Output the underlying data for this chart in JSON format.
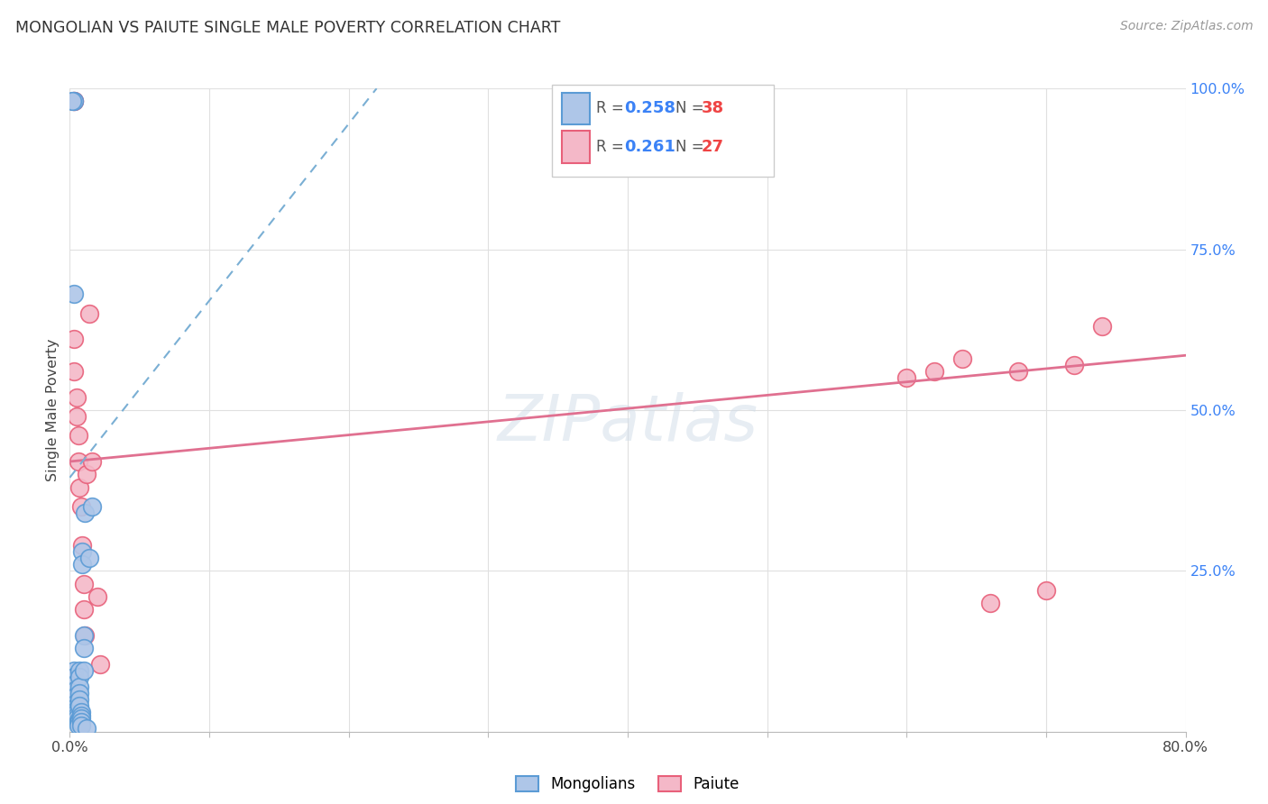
{
  "title": "MONGOLIAN VS PAIUTE SINGLE MALE POVERTY CORRELATION CHART",
  "source": "Source: ZipAtlas.com",
  "ylabel": "Single Male Poverty",
  "xlim": [
    0.0,
    0.8
  ],
  "ylim": [
    0.0,
    1.0
  ],
  "xticks": [
    0.0,
    0.1,
    0.2,
    0.3,
    0.4,
    0.5,
    0.6,
    0.7,
    0.8
  ],
  "xticklabels": [
    "0.0%",
    "",
    "",
    "",
    "",
    "",
    "",
    "",
    "80.0%"
  ],
  "yticks": [
    0.0,
    0.25,
    0.5,
    0.75,
    1.0
  ],
  "yticklabels": [
    "",
    "25.0%",
    "50.0%",
    "75.0%",
    "100.0%"
  ],
  "mongolian_fill_color": "#aec6e8",
  "mongolian_edge_color": "#5b9bd5",
  "paiute_fill_color": "#f4b8c8",
  "paiute_edge_color": "#e8607a",
  "mongolian_line_color": "#7aafd4",
  "paiute_line_color": "#e07090",
  "legend_R_color": "#3b82f6",
  "legend_N_color": "#ef4444",
  "background_color": "#ffffff",
  "grid_color": "#e0e0e0",
  "mongolian_R": 0.258,
  "mongolian_N": 38,
  "paiute_R": 0.261,
  "paiute_N": 27,
  "mongolian_scatter_x": [
    0.003,
    0.003,
    0.004,
    0.004,
    0.004,
    0.004,
    0.005,
    0.005,
    0.005,
    0.005,
    0.005,
    0.006,
    0.006,
    0.006,
    0.006,
    0.007,
    0.007,
    0.007,
    0.007,
    0.007,
    0.007,
    0.008,
    0.008,
    0.008,
    0.008,
    0.008,
    0.009,
    0.009,
    0.01,
    0.01,
    0.01,
    0.011,
    0.012,
    0.014,
    0.016,
    0.003,
    0.003,
    0.002
  ],
  "mongolian_scatter_y": [
    0.095,
    0.085,
    0.075,
    0.065,
    0.055,
    0.045,
    0.04,
    0.035,
    0.03,
    0.025,
    0.02,
    0.018,
    0.015,
    0.013,
    0.01,
    0.095,
    0.085,
    0.07,
    0.06,
    0.05,
    0.04,
    0.03,
    0.025,
    0.02,
    0.015,
    0.01,
    0.28,
    0.26,
    0.15,
    0.13,
    0.095,
    0.34,
    0.005,
    0.27,
    0.35,
    0.68,
    0.98,
    0.98
  ],
  "paiute_scatter_x": [
    0.003,
    0.003,
    0.005,
    0.005,
    0.006,
    0.006,
    0.007,
    0.008,
    0.009,
    0.01,
    0.01,
    0.011,
    0.012,
    0.014,
    0.016,
    0.02,
    0.022,
    0.6,
    0.62,
    0.64,
    0.66,
    0.68,
    0.7,
    0.72,
    0.74,
    0.003,
    0.003
  ],
  "paiute_scatter_y": [
    0.61,
    0.56,
    0.52,
    0.49,
    0.46,
    0.42,
    0.38,
    0.35,
    0.29,
    0.23,
    0.19,
    0.15,
    0.4,
    0.65,
    0.42,
    0.21,
    0.105,
    0.55,
    0.56,
    0.58,
    0.2,
    0.56,
    0.22,
    0.57,
    0.63,
    0.98,
    0.98
  ],
  "paiute_line_x0": 0.0,
  "paiute_line_y0": 0.42,
  "paiute_line_x1": 0.8,
  "paiute_line_y1": 0.585,
  "mongolian_line_x0": 0.0,
  "mongolian_line_y0": 0.395,
  "mongolian_line_x1": 0.22,
  "mongolian_line_y1": 1.0
}
